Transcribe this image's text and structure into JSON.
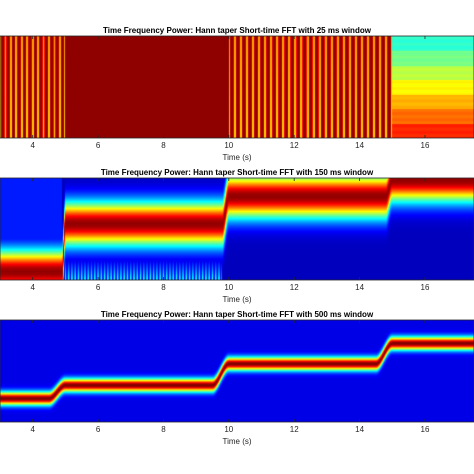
{
  "figure": {
    "colormap": "jet",
    "panels": [
      {
        "title": "Time Frequency Power: Hann taper Short-time FFT with 25 ms window",
        "xlabel": "Time (s)",
        "xticks": [
          "4",
          "6",
          "8",
          "10",
          "12",
          "14",
          "16"
        ]
      },
      {
        "title": "Time Frequency Power: Hann taper Short-time FFT with 150 ms window",
        "xlabel": "Time (s)",
        "xticks": [
          "4",
          "6",
          "8",
          "10",
          "12",
          "14",
          "16"
        ]
      },
      {
        "title": "Time Frequency Power: Hann taper Short-time FFT with 500 ms window",
        "xlabel": "Time (s)",
        "xticks": [
          "4",
          "6",
          "8",
          "10",
          "12",
          "14",
          "16"
        ]
      }
    ]
  },
  "chart_data": [
    {
      "type": "heatmap",
      "title": "Time Frequency Power: Hann taper Short-time FFT with 25 ms window",
      "xlabel": "Time (s)",
      "ylabel": "",
      "xlim": [
        3.0,
        17.5
      ],
      "xticks": [
        4,
        6,
        8,
        10,
        12,
        14,
        16
      ],
      "colormap": "jet",
      "grid": false,
      "legend": "none",
      "segments": [
        {
          "t_start": 3.0,
          "t_end": 5.0,
          "pattern": "vertical stripes",
          "stripe_count": 12
        },
        {
          "t_start": 5.0,
          "t_end": 10.0,
          "pattern": "uniform high power",
          "stripe_count": 0
        },
        {
          "t_start": 10.0,
          "t_end": 15.0,
          "pattern": "vertical stripes",
          "stripe_count": 27
        },
        {
          "t_start": 15.0,
          "t_end": 17.5,
          "pattern": "horizontal bands",
          "stripe_count": 0
        }
      ]
    },
    {
      "type": "heatmap",
      "title": "Time Frequency Power: Hann taper Short-time FFT with 150 ms window",
      "xlabel": "Time (s)",
      "ylabel": "",
      "xlim": [
        3.0,
        17.5
      ],
      "xticks": [
        4,
        6,
        8,
        10,
        12,
        14,
        16
      ],
      "colormap": "jet",
      "grid": false,
      "legend": "none",
      "ridge": {
        "segments": [
          {
            "t_start": 3.0,
            "t_end": 4.9,
            "level": 0.08
          },
          {
            "t_start": 5.0,
            "t_end": 9.8,
            "level": 0.55
          },
          {
            "t_start": 10.0,
            "t_end": 14.8,
            "level": 0.82
          },
          {
            "t_start": 15.0,
            "t_end": 17.5,
            "level": 0.98
          }
        ],
        "bandwidth": 0.15
      }
    },
    {
      "type": "heatmap",
      "title": "Time Frequency Power: Hann taper Short-time FFT with 500 ms window",
      "xlabel": "Time (s)",
      "ylabel": "",
      "xlim": [
        3.0,
        17.5
      ],
      "xticks": [
        4,
        6,
        8,
        10,
        12,
        14,
        16
      ],
      "colormap": "jet",
      "grid": false,
      "legend": "none",
      "ridge": {
        "segments": [
          {
            "t_start": 3.0,
            "t_end": 4.5,
            "level": 0.23
          },
          {
            "t_start": 5.0,
            "t_end": 9.5,
            "level": 0.36
          },
          {
            "t_start": 10.0,
            "t_end": 14.5,
            "level": 0.57
          },
          {
            "t_start": 15.0,
            "t_end": 17.5,
            "level": 0.77
          }
        ],
        "bandwidth": 0.045
      }
    }
  ]
}
